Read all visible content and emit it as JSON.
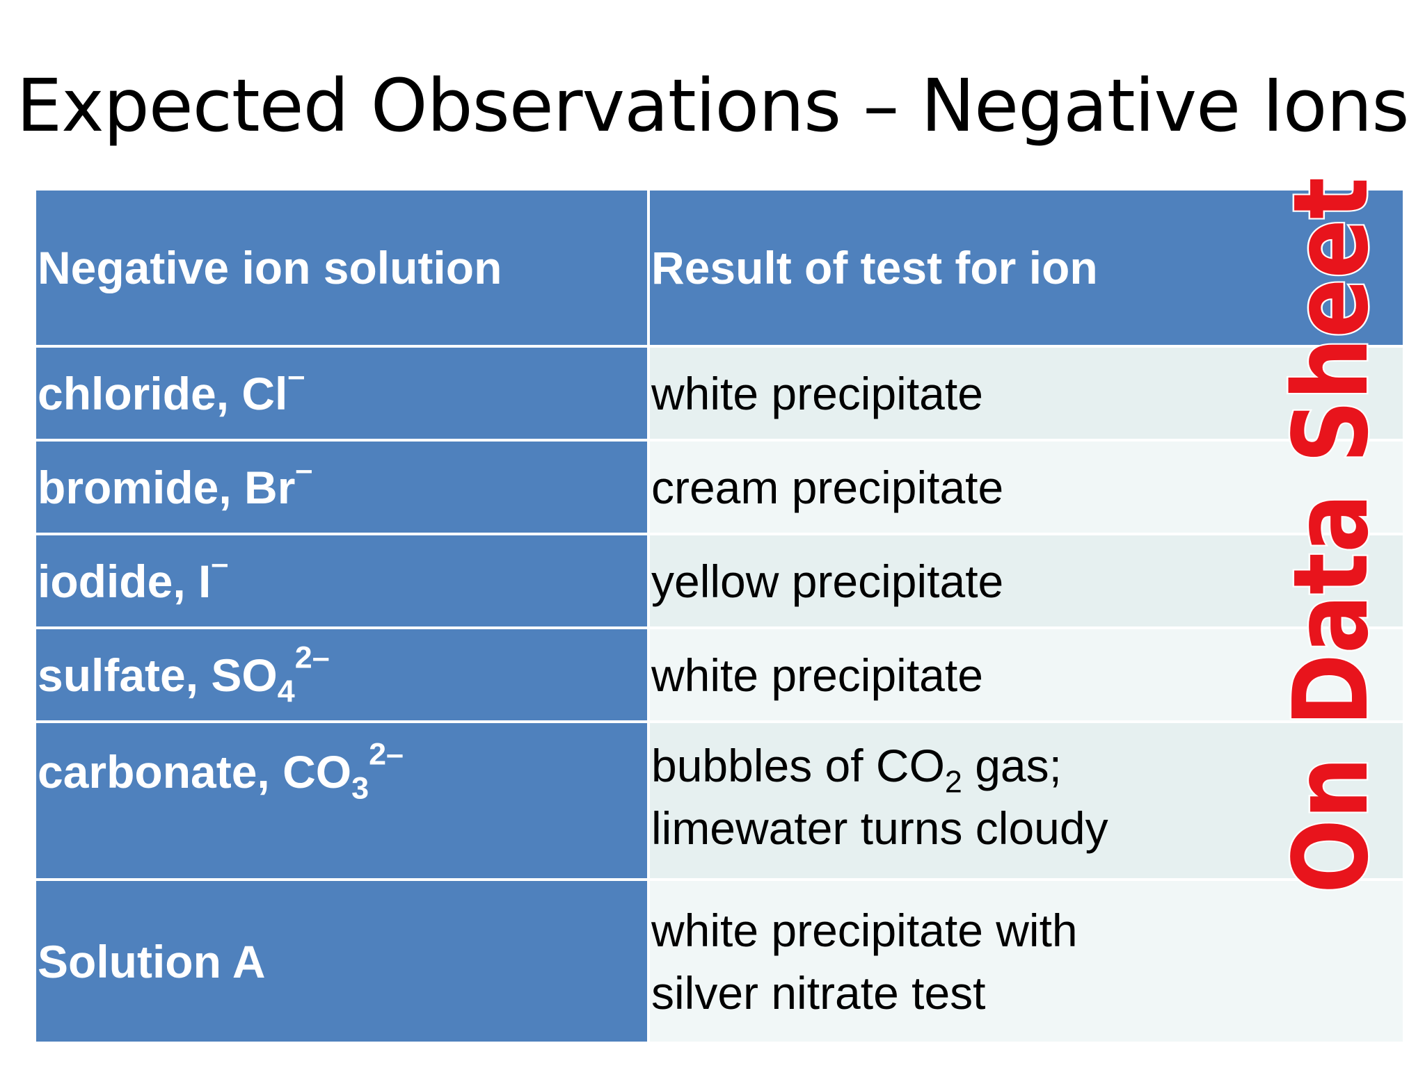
{
  "slide": {
    "title": "Expected Observations – Negative Ions"
  },
  "table": {
    "headers": [
      "Negative ion solution",
      "Result of test for ion"
    ],
    "rows": [
      {
        "ion_name": "chloride, Cl",
        "ion_charge": "–",
        "result": "white precipitate"
      },
      {
        "ion_name": "bromide, Br",
        "ion_charge": "–",
        "result": "cream precipitate"
      },
      {
        "ion_name": "iodide, I",
        "ion_charge": "–",
        "result": "yellow precipitate"
      },
      {
        "ion_name": "sulfate, SO",
        "ion_subscript": "4",
        "ion_charge": "2–",
        "result": "white precipitate"
      },
      {
        "ion_name": "carbonate, CO",
        "ion_subscript": "3",
        "ion_charge": "2–",
        "result_line1_pre": "bubbles of CO",
        "result_line1_sub": "2",
        "result_line1_post": " gas;",
        "result_line2": "limewater turns cloudy"
      },
      {
        "ion_name": "Solution A",
        "result_line1": "white precipitate with",
        "result_line2": "silver nitrate test"
      }
    ]
  },
  "stamp": {
    "text": "On Data Sheet",
    "fill_color": "#e8141c",
    "outline_color": "#ffffff"
  },
  "colors": {
    "header_blue": "#4f81bd",
    "row_light_a": "#e6f0f0",
    "row_light_b": "#f1f7f7"
  }
}
